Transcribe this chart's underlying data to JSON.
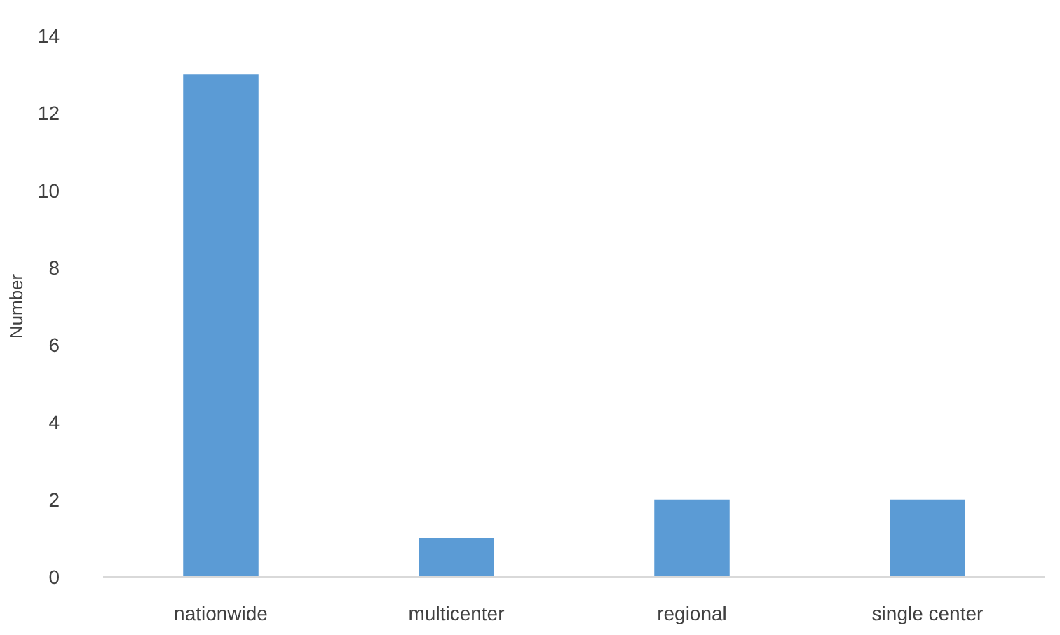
{
  "chart_data": {
    "type": "bar",
    "ylabel": "Number",
    "categories": [
      "nationwide",
      "multicenter",
      "regional",
      "single center"
    ],
    "values": [
      13,
      1,
      2,
      2
    ],
    "color": "#5b9bd5",
    "ylim": [
      0,
      14
    ],
    "yticks": [
      0,
      2,
      4,
      6,
      8,
      10,
      12,
      14
    ],
    "grid": false
  }
}
